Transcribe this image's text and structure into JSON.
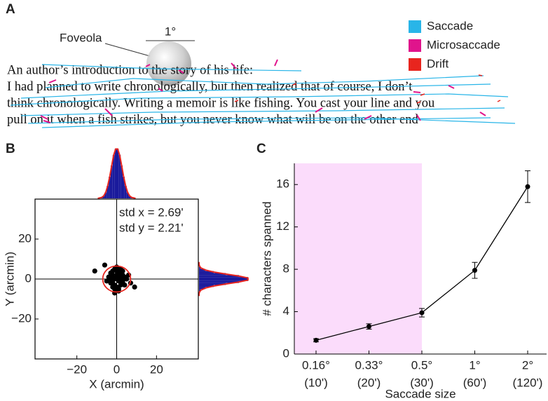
{
  "panel_a": {
    "label": "A",
    "legend": [
      {
        "name": "Saccade",
        "color": "#29b5e8"
      },
      {
        "name": "Microsaccade",
        "color": "#e0148c"
      },
      {
        "name": "Drift",
        "color": "#e8251e"
      }
    ],
    "foveola_label": "Foveola",
    "scale_label": "1°",
    "text_lines": [
      "An author’s introduction to the story of his life:",
      "I had planned to write chronologically, but then realized that of course, I don’t",
      "think chronologically. Writing a memoir is like fishing. You cast your line and you",
      "pull on it when a fish strikes, but you never know what will be on the other end"
    ]
  },
  "chart_data": [
    {
      "type": "scatter",
      "label": "B",
      "xlabel": "X (arcmin)",
      "ylabel": "Y (arcmin)",
      "annotations": [
        "std x = 2.69'",
        "std y = 2.21'"
      ],
      "x": [
        -11,
        -6,
        -1,
        9,
        7,
        -3,
        -2,
        -1,
        0,
        1,
        2,
        3,
        4,
        -4,
        -3,
        -2,
        0,
        1,
        2,
        3,
        5,
        -1,
        0,
        2,
        -2,
        1,
        3,
        -3,
        0,
        4,
        -1,
        1,
        2,
        -2,
        0,
        3,
        6,
        -5,
        1,
        -1
      ],
      "y": [
        4,
        7,
        -7,
        -4,
        -2,
        3,
        4,
        5,
        4,
        3,
        5,
        2,
        1,
        1,
        0,
        -1,
        0,
        -1,
        0,
        -2,
        0,
        -3,
        -4,
        -3,
        2,
        1,
        -1,
        -2,
        2,
        -3,
        -5,
        -5,
        3,
        -4,
        6,
        4,
        2,
        -1,
        -6,
        1
      ],
      "color": "#000000",
      "fit_ellipse": {
        "cx": 0,
        "cy": 0,
        "rx": 7,
        "ry": 6.5,
        "color": "#e8251e"
      },
      "x_histogram": {
        "bins": [
          -10,
          -9,
          -8,
          -7,
          -6,
          -5,
          -4,
          -3,
          -2,
          -1,
          0,
          1,
          2,
          3,
          4,
          5,
          6,
          7,
          8,
          9,
          10
        ],
        "counts": [
          0,
          1,
          2,
          5,
          12,
          25,
          43,
          65,
          86,
          98,
          98,
          86,
          65,
          43,
          25,
          12,
          5,
          2,
          1,
          0
        ]
      },
      "y_histogram": {
        "bins": [
          -9,
          -8,
          -7,
          -6,
          -5,
          -4,
          -3,
          -2,
          -1,
          0,
          1,
          2,
          3,
          4,
          5,
          6,
          7,
          8,
          9
        ],
        "counts": [
          0,
          0,
          1,
          4,
          13,
          29,
          53,
          79,
          97,
          97,
          79,
          53,
          29,
          13,
          4,
          1,
          0,
          0
        ]
      },
      "hist_lim": [
        0,
        100
      ],
      "hist_color": "#1a1a9c",
      "hist_outline_color": "#e8251e",
      "xlim": [
        -41,
        41
      ],
      "ylim": [
        -40,
        40
      ],
      "xticks": [
        {
          "value": -20,
          "label": "−20"
        },
        0,
        20
      ],
      "yticks": [
        {
          "value": -20,
          "label": "−20"
        },
        0,
        20
      ]
    },
    {
      "type": "line",
      "label": "C",
      "xlabel": "Saccade size",
      "ylabel": "# characters spanned",
      "categories": [
        "0.16°",
        "0.33°",
        "0.5°",
        "1°",
        "2°"
      ],
      "category_sublabels": [
        "(10')",
        "(20')",
        "(30')",
        "(60')",
        "(120')"
      ],
      "values": [
        1.3,
        2.6,
        3.9,
        7.9,
        15.8
      ],
      "errors": [
        0.15,
        0.25,
        0.4,
        0.75,
        1.5
      ],
      "color": "#000000",
      "shade_through_category": 2,
      "shade_color": "#fbdcfb",
      "ylim": [
        0,
        18
      ],
      "yticks": [
        0,
        4,
        8,
        12,
        16
      ]
    }
  ]
}
